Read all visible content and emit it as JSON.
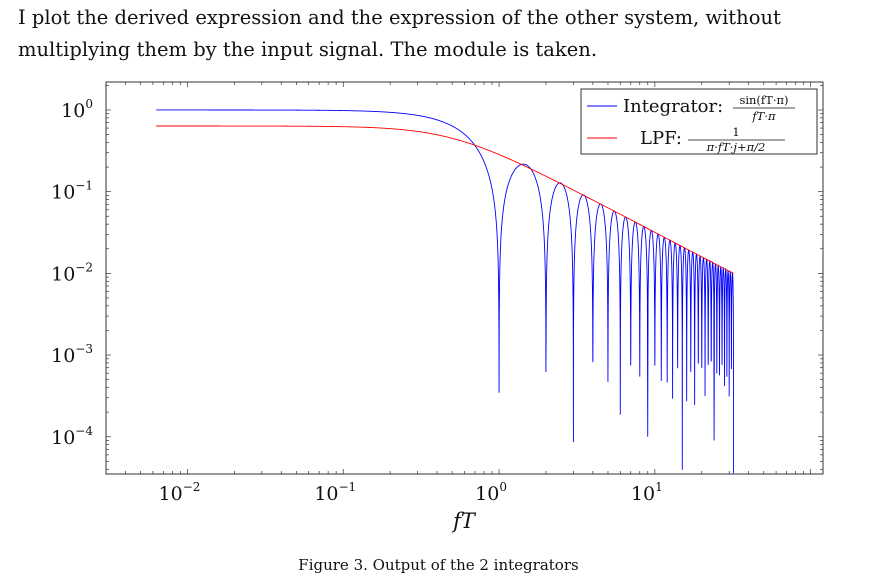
{
  "text": {
    "intro": "I plot the derived expression and the expression of the other system, without multiplying them by the input signal. The module is taken.",
    "caption": "Figure 3. Output of the 2 integrators"
  },
  "chart_data": {
    "type": "line",
    "xlabel": "fT",
    "ylabel": "",
    "xscale": "log",
    "yscale": "log",
    "xlim": [
      0.003,
      120
    ],
    "ylim": [
      3.5e-05,
      2.2
    ],
    "grid": false,
    "legend_position": "top-right",
    "x_tick_labels": [
      {
        "base": "10",
        "exp": "−2",
        "value": 0.01
      },
      {
        "base": "10",
        "exp": "−1",
        "value": 0.1
      },
      {
        "base": "10",
        "exp": "0",
        "value": 1
      },
      {
        "base": "10",
        "exp": "1",
        "value": 10
      }
    ],
    "y_tick_labels": [
      {
        "base": "10",
        "exp": "0",
        "value": 1
      },
      {
        "base": "10",
        "exp": "−1",
        "value": 0.1
      },
      {
        "base": "10",
        "exp": "−2",
        "value": 0.01
      },
      {
        "base": "10",
        "exp": "−3",
        "value": 0.001
      },
      {
        "base": "10",
        "exp": "−4",
        "value": 0.0001
      }
    ],
    "x_range": [
      0.0063,
      32
    ],
    "series": [
      {
        "name": "Integrator",
        "legend_label": "Integrator:",
        "formula_numerator": "sin(fT·π)",
        "formula_denominator": "fT·π",
        "color": "#0000ff",
        "expression": "|sin(fT·π) / (fT·π)|",
        "notable_points": [
          {
            "x": 1.0,
            "y": 0.003
          },
          {
            "x": 1.43,
            "y": 0.217
          },
          {
            "x": 2.0,
            "y": 0.0029
          },
          {
            "x": 9.0,
            "y": 0.0001
          },
          {
            "x": 24.0,
            "y": 9e-05
          }
        ]
      },
      {
        "name": "LPF",
        "legend_label": "LPF:",
        "formula_numerator": "1",
        "formula_denominator": "π·fT·j+π/2",
        "color": "#ff0000",
        "expression": "|1 / (π·fT·j + π/2)|",
        "notable_points": [
          {
            "x": 0.0063,
            "y": 0.637
          },
          {
            "x": 0.5,
            "y": 0.45
          },
          {
            "x": 32,
            "y": 0.0099
          }
        ]
      }
    ]
  }
}
